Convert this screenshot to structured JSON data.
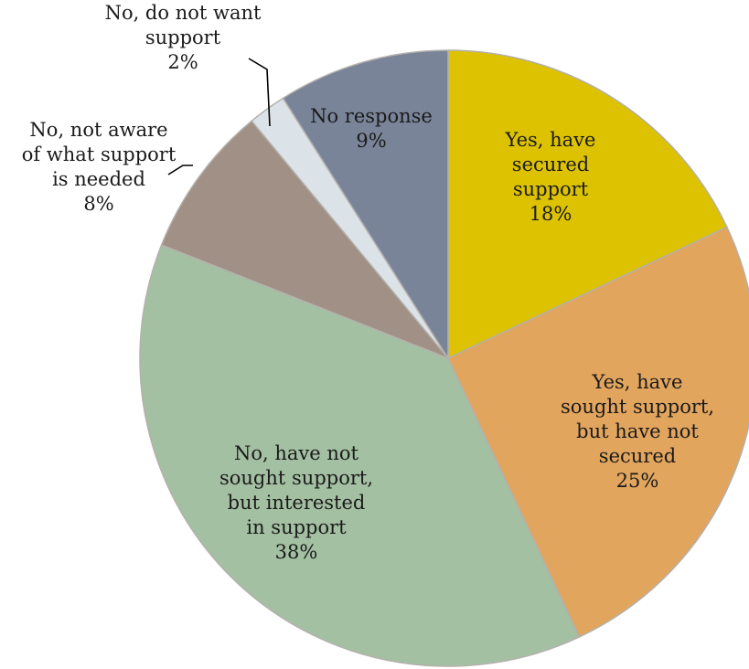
{
  "chart_data": {
    "type": "pie",
    "slices": [
      {
        "label": "Yes, have secured support",
        "value": 18,
        "value_label": "18%",
        "color": "#dcc200"
      },
      {
        "label": "Yes, have sought support, but have not secured",
        "value": 25,
        "value_label": "25%",
        "color": "#e2a55e"
      },
      {
        "label": "No, have not sought support, but interested in support",
        "value": 38,
        "value_label": "38%",
        "color": "#a3c0a2"
      },
      {
        "label": "No, not aware of what support is needed",
        "value": 8,
        "value_label": "8%",
        "color": "#a09085"
      },
      {
        "label": "No, do not want support",
        "value": 2,
        "value_label": "2%",
        "color": "#dce3e8"
      },
      {
        "label": "No response",
        "value": 9,
        "value_label": "9%",
        "color": "#7a8499"
      }
    ],
    "label_lines": [
      [
        "Yes, have",
        "secured",
        "support",
        "18%"
      ],
      [
        "Yes, have",
        "sought support,",
        "but have not",
        "secured",
        "25%"
      ],
      [
        "No, have not",
        "sought support,",
        "but interested",
        "in support",
        "38%"
      ],
      [
        "No, not aware",
        "of what support",
        "is needed",
        "8%"
      ],
      [
        "No, do not want",
        "support",
        "2%"
      ],
      [
        "No response",
        "9%"
      ]
    ]
  }
}
